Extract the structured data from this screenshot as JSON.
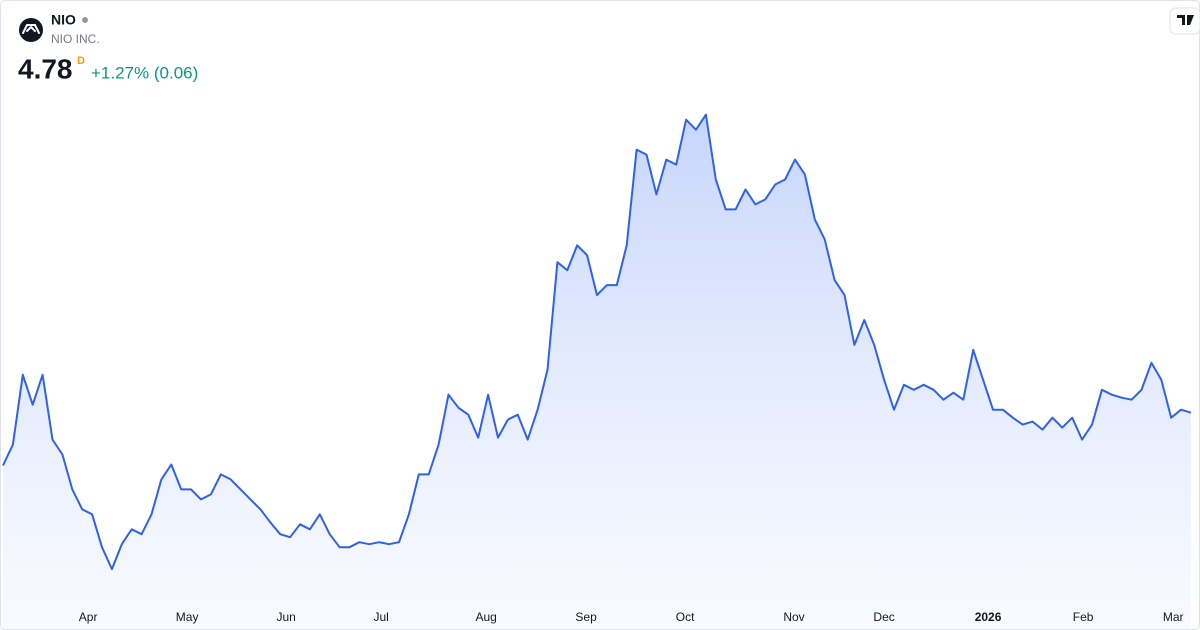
{
  "header": {
    "symbol": "NIO",
    "name": "NIO INC.",
    "price": "4.78",
    "interval": "D",
    "change": "+1.27% (0.06)"
  },
  "chart_data": {
    "type": "area",
    "color": "#2f62e8",
    "values": [
      4.25,
      4.46,
      5.16,
      4.86,
      5.16,
      4.51,
      4.36,
      4.01,
      3.81,
      3.76,
      3.43,
      3.21,
      3.46,
      3.61,
      3.56,
      3.76,
      4.11,
      4.26,
      4.01,
      4.01,
      3.91,
      3.96,
      4.16,
      4.11,
      4.01,
      3.91,
      3.81,
      3.68,
      3.56,
      3.53,
      3.66,
      3.61,
      3.76,
      3.56,
      3.43,
      3.43,
      3.48,
      3.46,
      3.48,
      3.46,
      3.48,
      3.76,
      4.16,
      4.16,
      4.46,
      4.96,
      4.83,
      4.76,
      4.53,
      4.96,
      4.53,
      4.71,
      4.76,
      4.51,
      4.81,
      5.21,
      6.29,
      6.21,
      6.46,
      6.36,
      5.96,
      6.06,
      6.06,
      6.46,
      7.42,
      7.37,
      6.97,
      7.32,
      7.27,
      7.72,
      7.62,
      7.77,
      7.12,
      6.82,
      6.82,
      7.02,
      6.87,
      6.92,
      7.07,
      7.12,
      7.32,
      7.17,
      6.72,
      6.52,
      6.11,
      5.96,
      5.46,
      5.71,
      5.46,
      5.11,
      4.81,
      5.06,
      5.01,
      5.06,
      5.01,
      4.91,
      4.98,
      4.91,
      5.41,
      5.11,
      4.81,
      4.81,
      4.73,
      4.66,
      4.69,
      4.61,
      4.73,
      4.63,
      4.73,
      4.51,
      4.66,
      5.01,
      4.96,
      4.93,
      4.91,
      5.01,
      5.28,
      5.11,
      4.73,
      4.81,
      4.78
    ],
    "xlim": [
      0,
      120
    ],
    "ylim": [
      2.9,
      8.52
    ],
    "xticks": [
      {
        "value": 8.6,
        "label": "Apr"
      },
      {
        "value": 18.6,
        "label": "May"
      },
      {
        "value": 28.6,
        "label": "Jun"
      },
      {
        "value": 38.2,
        "label": "Jul"
      },
      {
        "value": 48.8,
        "label": "Aug"
      },
      {
        "value": 58.9,
        "label": "Sep"
      },
      {
        "value": 68.9,
        "label": "Oct"
      },
      {
        "value": 79.9,
        "label": "Nov"
      },
      {
        "value": 89.0,
        "label": "Dec"
      },
      {
        "value": 99.5,
        "label": "2026"
      },
      {
        "value": 109.1,
        "label": "Feb"
      },
      {
        "value": 118.2,
        "label": "Mar"
      }
    ]
  }
}
